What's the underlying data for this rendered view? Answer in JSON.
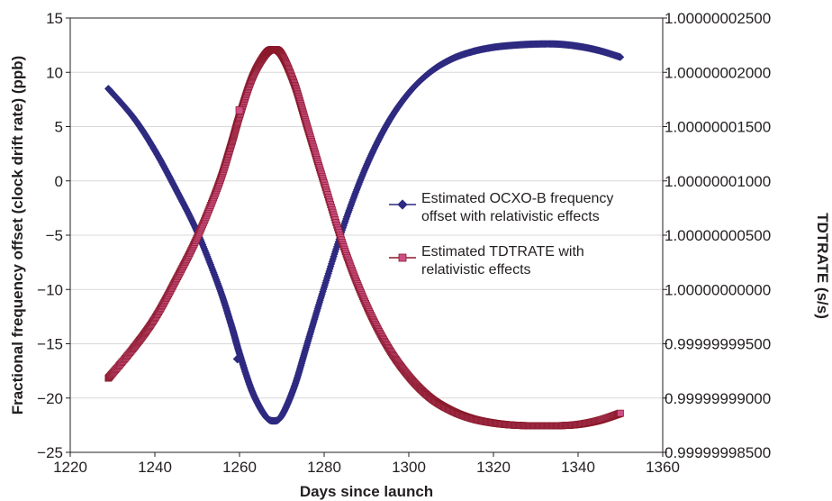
{
  "chart_data": {
    "type": "line",
    "xlabel": "Days since launch",
    "ylabel": "Fractional frequency offset (clock drift rate) (ppb)",
    "y2label": "TDTRATE (s/s)",
    "xlim": [
      1220,
      1360
    ],
    "ylim": [
      -25,
      15
    ],
    "y2lim": [
      0.999999985,
      1.000000025
    ],
    "xticks": [
      "1220",
      "1240",
      "1260",
      "1280",
      "1300",
      "1320",
      "1340",
      "1360"
    ],
    "yticks": [
      "−25",
      "−20",
      "−15",
      "−10",
      "−5",
      "0",
      "5",
      "10",
      "15"
    ],
    "y2ticks": [
      "0.99999998500",
      "0.99999999000",
      "0.99999999500",
      "1.00000000000",
      "1.00000000500",
      "1.00000001000",
      "1.00000001500",
      "1.00000002000",
      "1.00000002500"
    ],
    "grid": "horizontal",
    "legend": "center-right",
    "series": [
      {
        "name": "Estimated OCXO-B frequency offset with relativistic effects",
        "axis": "left",
        "color": "#2e2a80",
        "marker": "diamond",
        "x": [
          1229,
          1235,
          1240,
          1245,
          1250,
          1255,
          1258,
          1260,
          1263,
          1266,
          1268,
          1270,
          1273,
          1276,
          1280,
          1285,
          1290,
          1295,
          1300,
          1305,
          1310,
          1315,
          1320,
          1325,
          1330,
          1335,
          1340,
          1345,
          1350
        ],
        "y": [
          8.5,
          5.8,
          2.8,
          -0.8,
          -4.7,
          -9.6,
          -13.2,
          -15.9,
          -19.4,
          -21.6,
          -22.1,
          -21.6,
          -18.9,
          -15.0,
          -9.8,
          -3.7,
          1.4,
          5.3,
          8.1,
          10.0,
          11.2,
          11.9,
          12.3,
          12.5,
          12.6,
          12.6,
          12.4,
          12.0,
          11.4
        ]
      },
      {
        "name": "Estimated TDTRATE with relativistic effects",
        "axis": "right",
        "color": "#8a1a2a",
        "marker_color": "#cc4f86",
        "marker": "square",
        "x": [
          1229,
          1235,
          1240,
          1245,
          1250,
          1255,
          1258,
          1260,
          1263,
          1266,
          1268,
          1270,
          1273,
          1276,
          1280,
          1285,
          1290,
          1295,
          1300,
          1305,
          1310,
          1315,
          1320,
          1325,
          1330,
          1335,
          1340,
          1345,
          1350
        ],
        "y": [
          0.99999999183,
          0.99999999463,
          0.99999999735,
          1.0000000009,
          1.0000000048,
          1.0000000096,
          1.0000000133,
          1.000000016,
          1.0000000195,
          1.0000000216,
          1.0000000221,
          1.0000000216,
          1.0000000189,
          1.000000015,
          1.0000000098,
          1.0000000035,
          0.99999999855,
          0.99999999475,
          0.999999992,
          0.99999999005,
          0.99999998885,
          0.9999999881,
          0.9999999877,
          0.9999999875,
          0.99999998745,
          0.99999998745,
          0.99999998757,
          0.99999998795,
          0.9999999886
        ]
      }
    ],
    "annotations": [
      {
        "series": 0,
        "x": 1259.5,
        "y": -16.4
      },
      {
        "series": 1,
        "x": 1260,
        "y": 1.0000000165
      }
    ]
  }
}
